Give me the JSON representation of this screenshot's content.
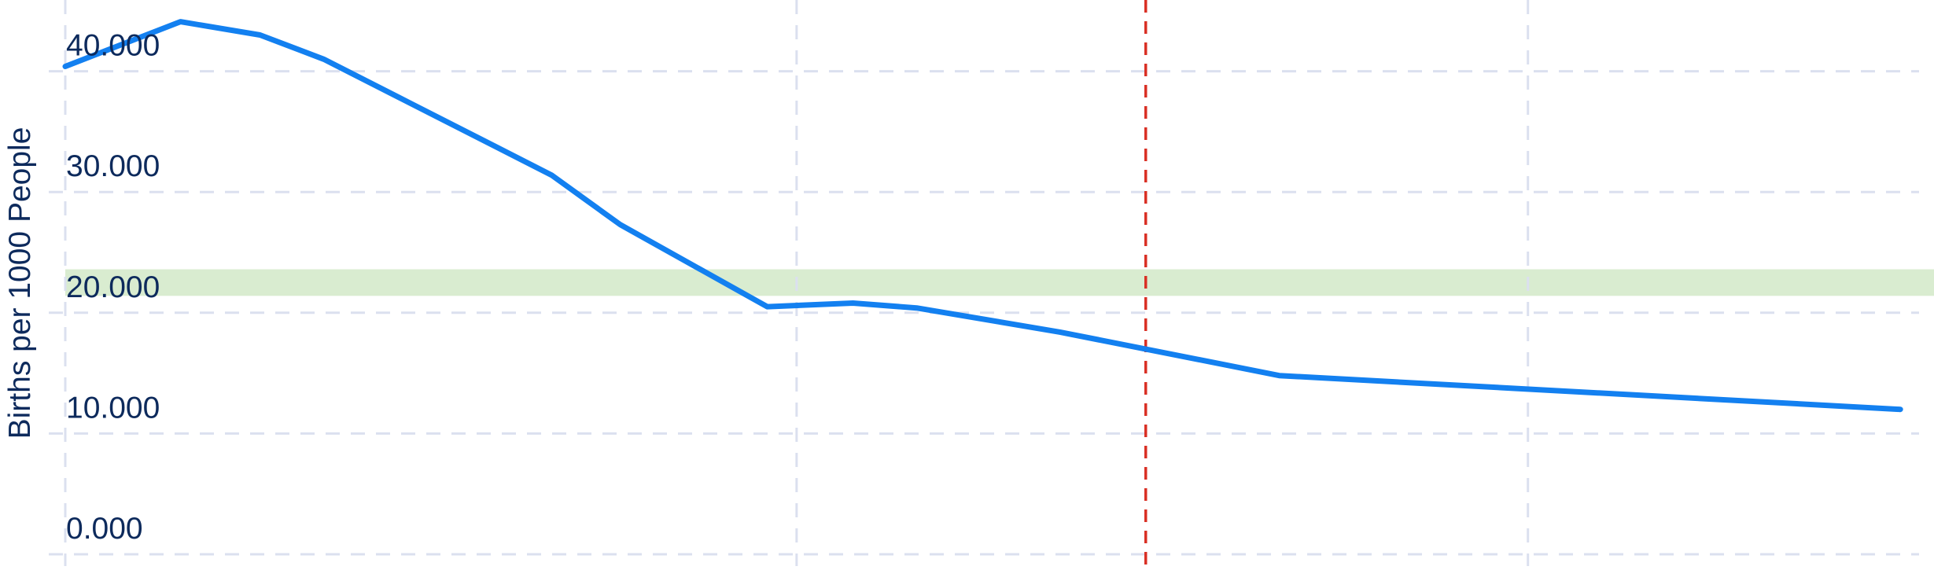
{
  "chart_data": {
    "type": "line",
    "ylabel": "Births per 1000 People",
    "xlabel": "",
    "title": "",
    "ylim": [
      0,
      45.9
    ],
    "y_ticks": [
      0,
      10,
      20,
      30,
      40
    ],
    "y_tick_labels": [
      "0.000",
      "10.000",
      "20.000",
      "30.000",
      "40.000"
    ],
    "x": [
      0,
      9.4,
      15.9,
      21.1,
      39.7,
      45.3,
      57.3,
      64.3,
      69.5,
      81.2,
      99.1,
      149.8
    ],
    "series": [
      {
        "values": [
          40.4,
          44.1,
          43.0,
          41.0,
          31.4,
          27.3,
          20.5,
          20.8,
          20.4,
          18.4,
          14.8,
          12.0
        ]
      }
    ],
    "xlim": [
      0,
      151.2
    ],
    "x_gridlines": [
      0,
      59.7,
      119.4
    ],
    "reference_band": {
      "y_from": 21.4,
      "y_to": 23.6,
      "color": "#d9ecd0"
    },
    "reference_line": {
      "x": 88.2,
      "color": "#d93025"
    },
    "colors": {
      "line": "#1380f0",
      "grid": "#dbe0ef",
      "text": "#0d2a5c"
    },
    "grid": true
  }
}
